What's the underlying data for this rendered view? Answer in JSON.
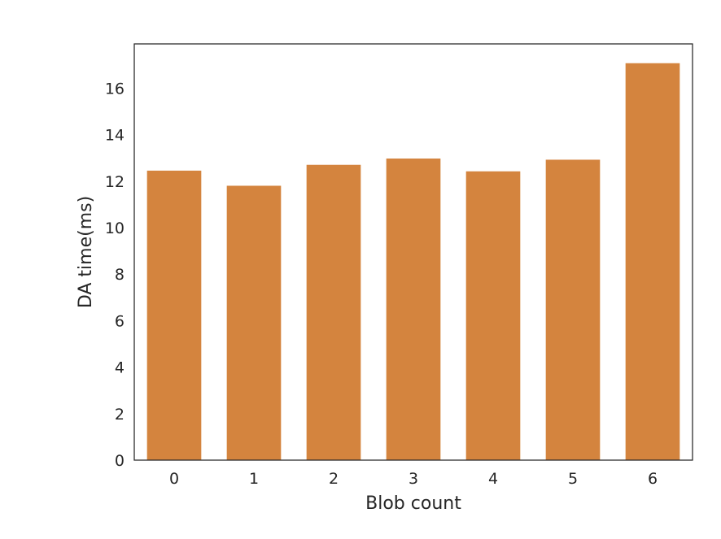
{
  "chart_data": {
    "type": "bar",
    "title": "",
    "xlabel": "Blob count",
    "ylabel": "DA time(ms)",
    "categories": [
      "0",
      "1",
      "2",
      "3",
      "4",
      "5",
      "6"
    ],
    "values": [
      12.45,
      11.8,
      12.7,
      12.97,
      12.42,
      12.92,
      17.07
    ],
    "ylim": [
      0,
      17.9
    ],
    "yticks": [
      0,
      2,
      4,
      6,
      8,
      10,
      12,
      14,
      16
    ],
    "bar_color": "#d4843e",
    "grid": false,
    "legend": "none"
  }
}
